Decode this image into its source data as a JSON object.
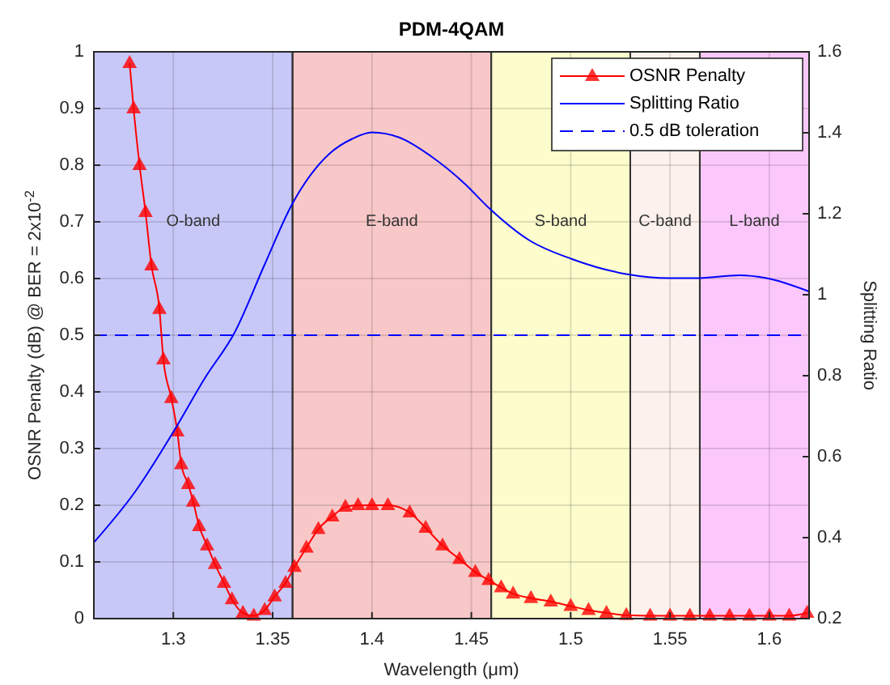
{
  "chart_data": {
    "type": "line",
    "title": "PDM-4QAM",
    "xlabel": "Wavelength (μm)",
    "ylabel": "OSNR Penalty (dB) @ BER = 2x10$^{-2}$",
    "y2label": "Splitting Ratio",
    "xlim": [
      1.26,
      1.62
    ],
    "xticks": [
      1.3,
      1.35,
      1.4,
      1.45,
      1.5,
      1.55,
      1.6
    ],
    "ylim": [
      0,
      1
    ],
    "yticks": [
      0,
      0.1,
      0.2,
      0.3,
      0.4,
      0.5,
      0.6,
      0.7,
      0.8,
      0.9,
      1
    ],
    "y2lim": [
      0.2,
      1.6
    ],
    "y2ticks": [
      0.2,
      0.4,
      0.6,
      0.8,
      1,
      1.2,
      1.4,
      1.6
    ],
    "grid": true,
    "legend": "top right",
    "series": [
      {
        "name": "OSNR Penalty",
        "color": "#ff0000",
        "marker": "triangle",
        "line_style": "solid",
        "x": [
          1.278,
          1.28,
          1.283,
          1.286,
          1.289,
          1.293,
          1.295,
          1.299,
          1.302,
          1.304,
          1.3075,
          1.31,
          1.313,
          1.317,
          1.321,
          1.3255,
          1.3295,
          1.335,
          1.3405,
          1.346,
          1.351,
          1.3565,
          1.361,
          1.367,
          1.373,
          1.38,
          1.3866,
          1.393,
          1.4,
          1.408,
          1.419,
          1.427,
          1.4355,
          1.444,
          1.452,
          1.4587,
          1.465,
          1.471,
          1.48,
          1.49,
          1.5,
          1.509,
          1.518,
          1.528,
          1.54,
          1.55,
          1.56,
          1.57,
          1.58,
          1.59,
          1.6,
          1.61,
          1.619
        ],
        "values": [
          0.98,
          0.9,
          0.8,
          0.717,
          0.623,
          0.546,
          0.457,
          0.389,
          0.33,
          0.272,
          0.237,
          0.206,
          0.163,
          0.129,
          0.096,
          0.063,
          0.034,
          0.01,
          0.005,
          0.015,
          0.039,
          0.063,
          0.091,
          0.125,
          0.158,
          0.18,
          0.197,
          0.2,
          0.2,
          0.2,
          0.187,
          0.16,
          0.129,
          0.105,
          0.082,
          0.068,
          0.055,
          0.044,
          0.036,
          0.03,
          0.022,
          0.015,
          0.01,
          0.006,
          0.005,
          0.005,
          0.005,
          0.005,
          0.005,
          0.005,
          0.005,
          0.005,
          0.01
        ]
      },
      {
        "name": "Splitting Ratio",
        "color": "#0000ff",
        "marker": "none",
        "line_style": "solid",
        "axis": "y2",
        "x": [
          1.26,
          1.281,
          1.3,
          1.316,
          1.331,
          1.346,
          1.3595,
          1.3785,
          1.39,
          1.4,
          1.414,
          1.43,
          1.4465,
          1.4587,
          1.479,
          1.5007,
          1.528,
          1.5496,
          1.5633,
          1.585,
          1.5986,
          1.62
        ],
        "values": [
          0.388,
          0.515,
          0.661,
          0.795,
          0.908,
          1.075,
          1.221,
          1.348,
          1.385,
          1.401,
          1.388,
          1.341,
          1.275,
          1.215,
          1.135,
          1.088,
          1.051,
          1.041,
          1.041,
          1.048,
          1.041,
          1.008
        ]
      }
    ],
    "ref_lines": [
      {
        "axis": "y",
        "value": 0.5,
        "label": "0.5 dB toleration",
        "color": "#0000ff",
        "line_style": "dashed"
      }
    ],
    "bands": [
      {
        "axis": "x",
        "from": 1.26,
        "to": 1.36,
        "label": "O-band",
        "color": "#c8c8f8"
      },
      {
        "axis": "x",
        "from": 1.36,
        "to": 1.46,
        "label": "E-band",
        "color": "#f8c8c8"
      },
      {
        "axis": "x",
        "from": 1.46,
        "to": 1.53,
        "label": "S-band",
        "color": "#fcfccc"
      },
      {
        "axis": "x",
        "from": 1.53,
        "to": 1.565,
        "label": "C-band",
        "color": "#fcf1ec"
      },
      {
        "axis": "x",
        "from": 1.565,
        "to": 1.62,
        "label": "L-band",
        "color": "#fcc8fc"
      }
    ]
  }
}
